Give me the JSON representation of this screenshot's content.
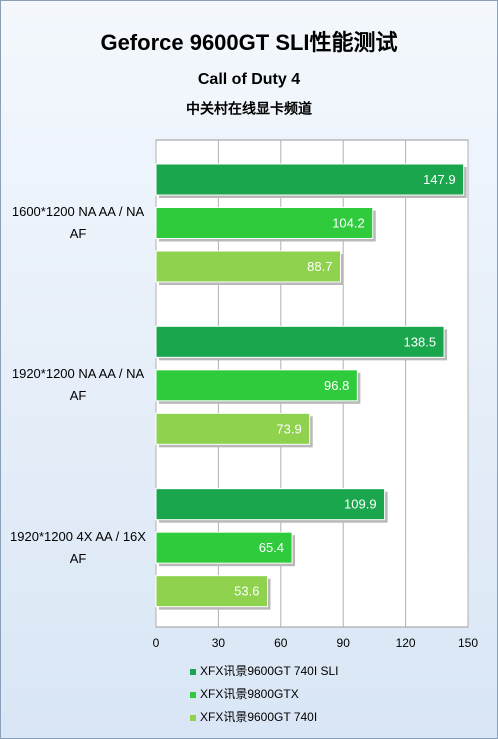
{
  "chart_data": {
    "type": "bar",
    "orientation": "horizontal",
    "title": "Geforce 9600GT SLI性能测试",
    "subtitle": "Call of Duty 4",
    "source": "中关村在线显卡频道",
    "categories": [
      "1600*1200 NA AA / NA AF",
      "1920*1200 NA AA / NA AF",
      "1920*1200 4X AA / 16X AF"
    ],
    "series": [
      {
        "name": "XFX讯景9600GT 740I SLI",
        "color": "#1aa64c",
        "values": [
          147.9,
          138.5,
          109.9
        ]
      },
      {
        "name": "XFX讯景9800GTX",
        "color": "#2fcb3d",
        "values": [
          104.2,
          96.8,
          65.4
        ]
      },
      {
        "name": "XFX讯景9600GT 740I",
        "color": "#8fd24e",
        "values": [
          88.7,
          73.9,
          53.6
        ]
      }
    ],
    "xlim": [
      0,
      150
    ],
    "xticks": [
      0,
      30,
      60,
      90,
      120,
      150
    ],
    "grid": true,
    "legend": "bottom"
  }
}
